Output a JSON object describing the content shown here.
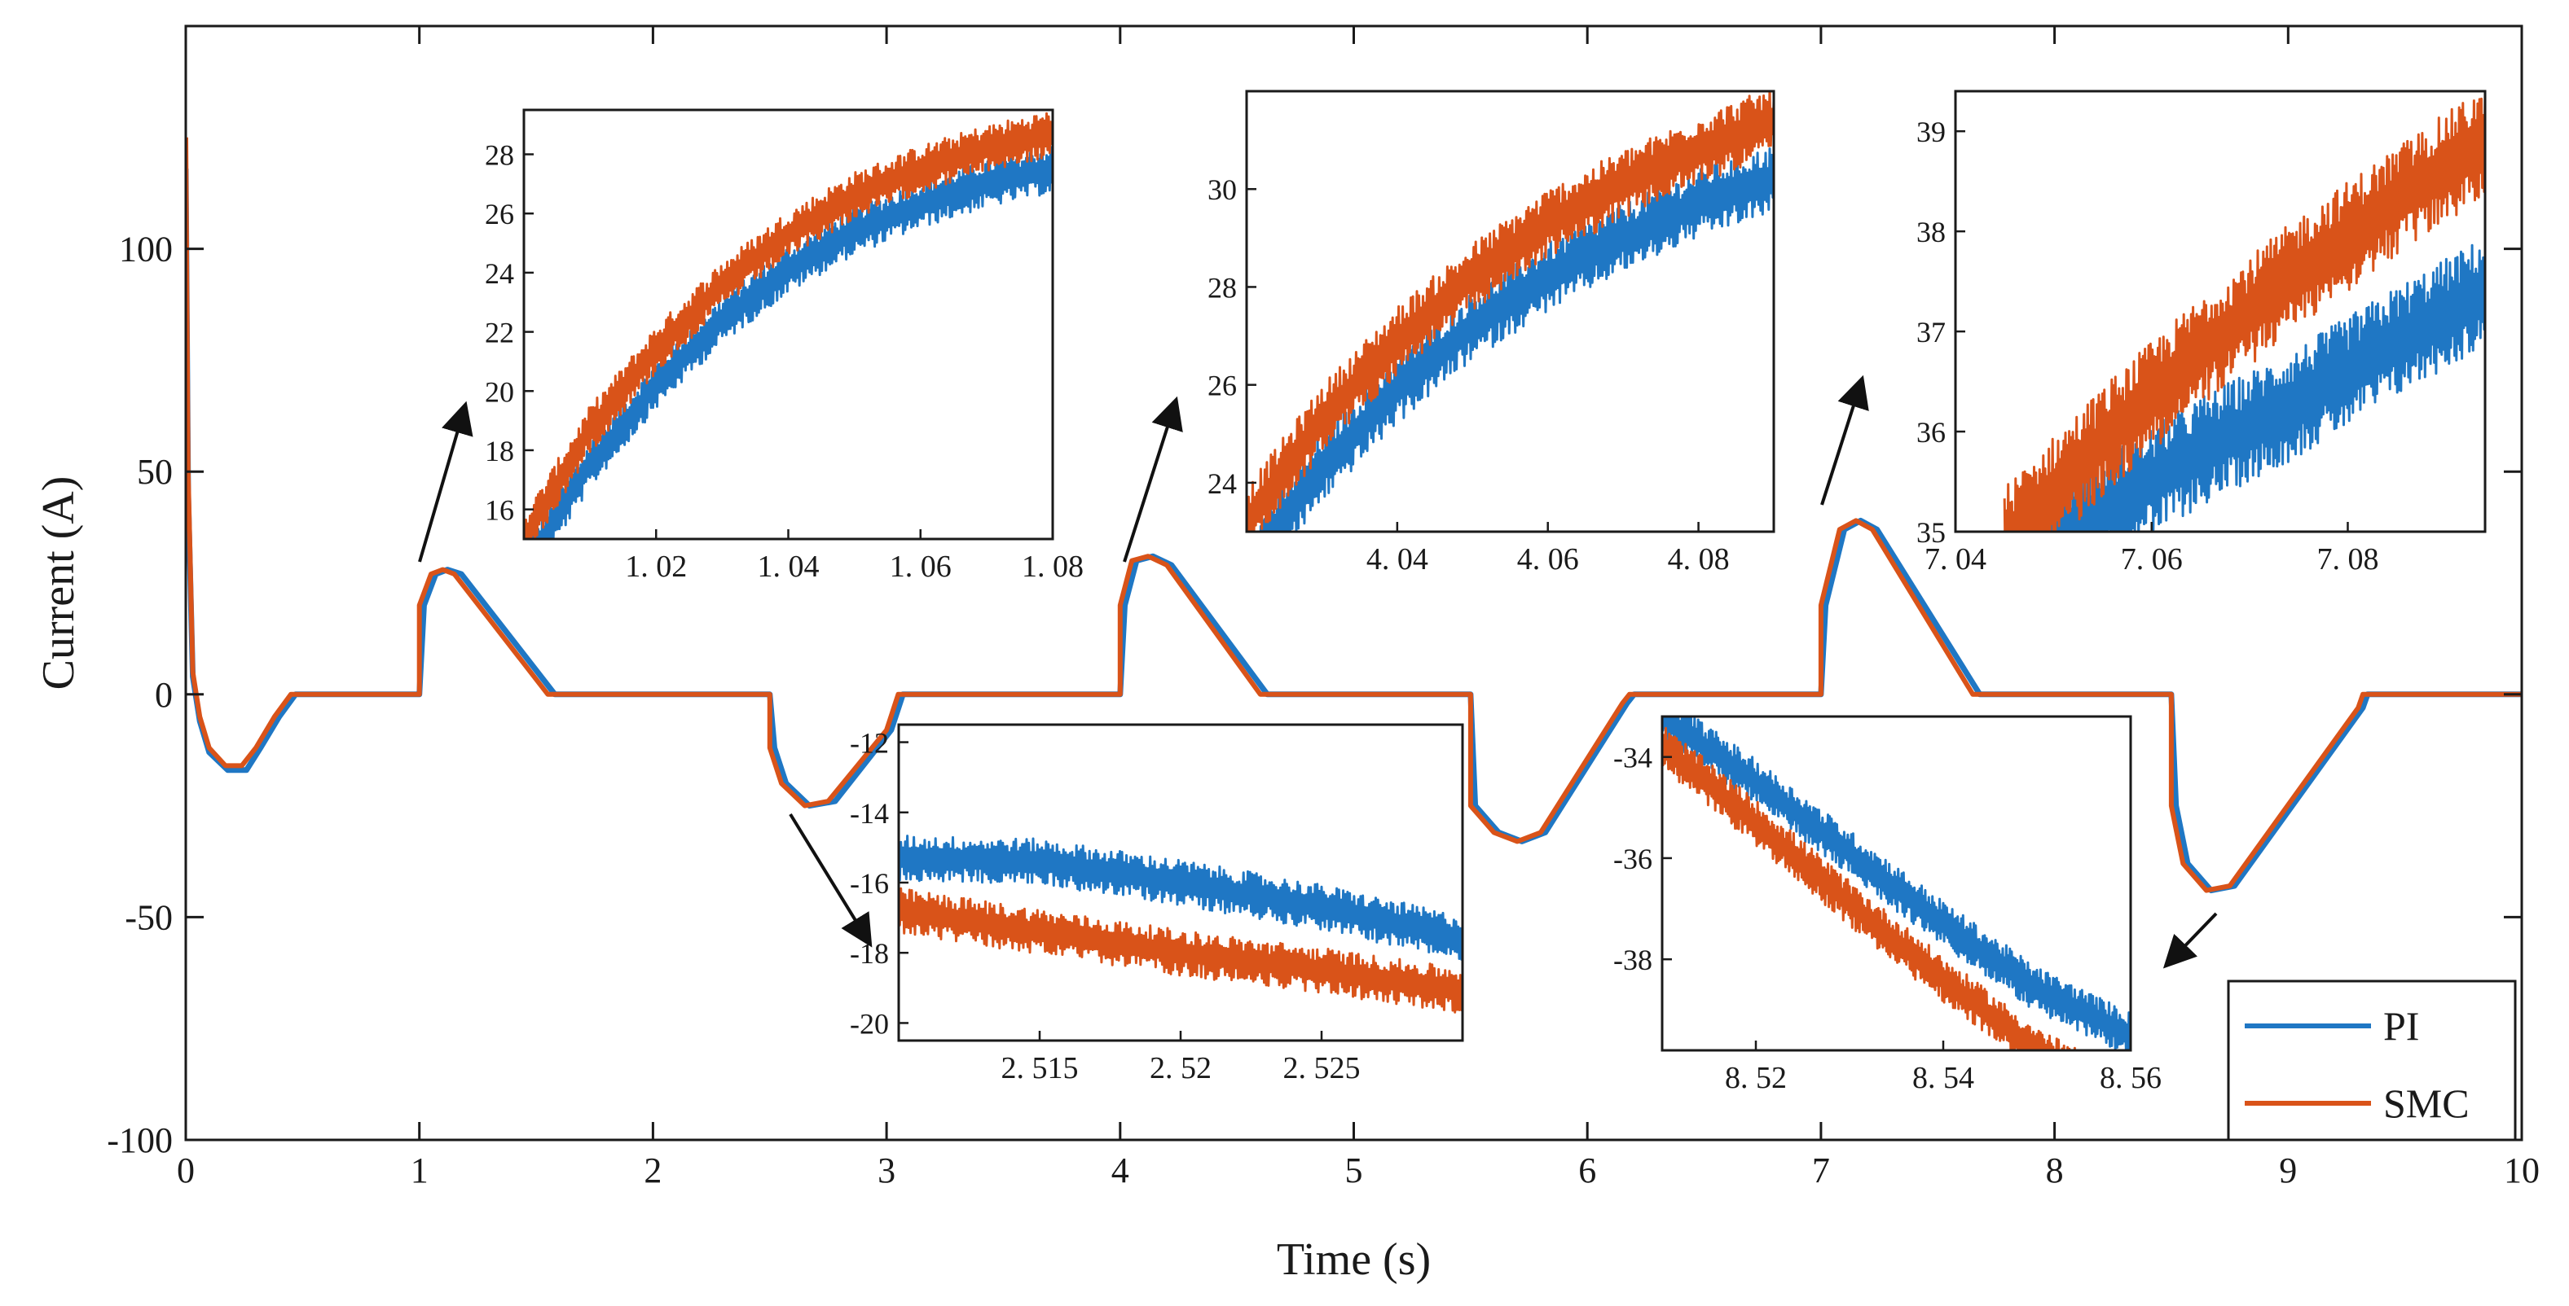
{
  "chart_data": {
    "type": "line",
    "main": {
      "xlabel": "Time (s)",
      "ylabel": "Current (A)",
      "xlim": [
        0,
        10
      ],
      "ylim": [
        -100,
        150
      ],
      "xticks": [
        0,
        1,
        2,
        3,
        4,
        5,
        6,
        7,
        8,
        9,
        10
      ],
      "xtick_labels": [
        "0",
        "1",
        "2",
        "3",
        "4",
        "5",
        "6",
        "7",
        "8",
        "9",
        "10"
      ],
      "yticks": [
        -100,
        -50,
        0,
        50,
        100
      ],
      "ytick_labels": [
        "-100",
        "-50",
        "0",
        "50",
        "100"
      ],
      "legend": {
        "position": "bottom-right",
        "entries": [
          "PI",
          "SMC"
        ]
      },
      "series": [
        {
          "name": "SMC",
          "color": "#d95319",
          "points": [
            [
              0,
              125
            ],
            [
              0.01,
              50
            ],
            [
              0.03,
              5
            ],
            [
              0.06,
              -5
            ],
            [
              0.1,
              -12
            ],
            [
              0.17,
              -16
            ],
            [
              0.24,
              -16
            ],
            [
              0.3,
              -12
            ],
            [
              0.38,
              -5
            ],
            [
              0.45,
              0
            ],
            [
              1.0,
              0
            ],
            [
              1.0,
              20
            ],
            [
              1.05,
              27
            ],
            [
              1.1,
              28
            ],
            [
              1.15,
              27
            ],
            [
              1.55,
              0
            ],
            [
              2.5,
              0
            ],
            [
              2.5,
              -12
            ],
            [
              2.55,
              -20
            ],
            [
              2.65,
              -25
            ],
            [
              2.75,
              -24
            ],
            [
              3.0,
              -8
            ],
            [
              3.05,
              0
            ],
            [
              4.0,
              0
            ],
            [
              4.0,
              20
            ],
            [
              4.05,
              30
            ],
            [
              4.12,
              31
            ],
            [
              4.2,
              29
            ],
            [
              4.6,
              0
            ],
            [
              5.5,
              0
            ],
            [
              5.5,
              -25
            ],
            [
              5.6,
              -31
            ],
            [
              5.7,
              -33
            ],
            [
              5.8,
              -31
            ],
            [
              6.15,
              -2
            ],
            [
              6.18,
              0
            ],
            [
              7.0,
              0
            ],
            [
              7.0,
              20
            ],
            [
              7.08,
              37
            ],
            [
              7.15,
              39
            ],
            [
              7.22,
              37
            ],
            [
              7.65,
              0
            ],
            [
              8.5,
              0
            ],
            [
              8.5,
              -25
            ],
            [
              8.55,
              -38
            ],
            [
              8.65,
              -44
            ],
            [
              8.75,
              -43
            ],
            [
              9.3,
              -3
            ],
            [
              9.32,
              0
            ],
            [
              10.0,
              0
            ]
          ]
        },
        {
          "name": "PI",
          "color": "#1f77c4",
          "points": [
            [
              0,
              118
            ],
            [
              0.01,
              45
            ],
            [
              0.03,
              4
            ],
            [
              0.06,
              -6
            ],
            [
              0.1,
              -13
            ],
            [
              0.18,
              -17
            ],
            [
              0.26,
              -17
            ],
            [
              0.32,
              -12
            ],
            [
              0.4,
              -5
            ],
            [
              0.47,
              0
            ],
            [
              1.0,
              0
            ],
            [
              1.02,
              20
            ],
            [
              1.07,
              27
            ],
            [
              1.12,
              28
            ],
            [
              1.18,
              27
            ],
            [
              1.58,
              0
            ],
            [
              2.5,
              0
            ],
            [
              2.52,
              -12
            ],
            [
              2.57,
              -20
            ],
            [
              2.67,
              -25
            ],
            [
              2.78,
              -24
            ],
            [
              3.02,
              -8
            ],
            [
              3.07,
              0
            ],
            [
              4.0,
              0
            ],
            [
              4.02,
              20
            ],
            [
              4.07,
              30
            ],
            [
              4.14,
              31
            ],
            [
              4.22,
              29
            ],
            [
              4.63,
              0
            ],
            [
              5.5,
              0
            ],
            [
              5.52,
              -25
            ],
            [
              5.62,
              -31
            ],
            [
              5.72,
              -33
            ],
            [
              5.82,
              -31
            ],
            [
              6.17,
              -2
            ],
            [
              6.2,
              0
            ],
            [
              7.0,
              0
            ],
            [
              7.02,
              20
            ],
            [
              7.1,
              37
            ],
            [
              7.17,
              39
            ],
            [
              7.24,
              37
            ],
            [
              7.68,
              0
            ],
            [
              8.5,
              0
            ],
            [
              8.52,
              -25
            ],
            [
              8.57,
              -38
            ],
            [
              8.67,
              -44
            ],
            [
              8.77,
              -43
            ],
            [
              9.32,
              -3
            ],
            [
              9.34,
              0
            ],
            [
              10.0,
              0
            ]
          ]
        }
      ]
    },
    "insets": [
      {
        "xlim": [
          1.0,
          1.08
        ],
        "ylim": [
          15,
          29.5
        ],
        "xticks": [
          1.02,
          1.04,
          1.06,
          1.08
        ],
        "xtick_labels": [
          "1. 02",
          "1. 04",
          "1. 06",
          "1. 08"
        ],
        "yticks": [
          16,
          18,
          20,
          22,
          24,
          26,
          28
        ],
        "ytick_labels": [
          "16",
          "18",
          "20",
          "22",
          "24",
          "26",
          "28"
        ],
        "pi": [
          [
            1.0,
            14
          ],
          [
            1.01,
            17.5
          ],
          [
            1.02,
            20.2
          ],
          [
            1.03,
            22.4
          ],
          [
            1.04,
            24.1
          ],
          [
            1.05,
            25.4
          ],
          [
            1.06,
            26.3
          ],
          [
            1.07,
            27.0
          ],
          [
            1.08,
            27.5
          ]
        ],
        "smc": [
          [
            1.0,
            15
          ],
          [
            1.01,
            18.7
          ],
          [
            1.02,
            21.4
          ],
          [
            1.03,
            23.6
          ],
          [
            1.04,
            25.3
          ],
          [
            1.05,
            26.6
          ],
          [
            1.06,
            27.5
          ],
          [
            1.07,
            28.2
          ],
          [
            1.08,
            28.7
          ]
        ],
        "band": 1.6
      },
      {
        "xlim": [
          4.02,
          4.09
        ],
        "ylim": [
          23,
          32
        ],
        "xticks": [
          4.04,
          4.06,
          4.08
        ],
        "xtick_labels": [
          "4. 04",
          "4. 06",
          "4. 08"
        ],
        "yticks": [
          24,
          26,
          28,
          30
        ],
        "ytick_labels": [
          "24",
          "26",
          "28",
          "30"
        ],
        "pi": [
          [
            4.02,
            22.2
          ],
          [
            4.03,
            24.3
          ],
          [
            4.04,
            25.9
          ],
          [
            4.05,
            27.2
          ],
          [
            4.06,
            28.2
          ],
          [
            4.07,
            29.0
          ],
          [
            4.08,
            29.7
          ],
          [
            4.09,
            30.2
          ]
        ],
        "smc": [
          [
            4.02,
            23.2
          ],
          [
            4.03,
            25.3
          ],
          [
            4.04,
            26.9
          ],
          [
            4.05,
            28.2
          ],
          [
            4.06,
            29.3
          ],
          [
            4.07,
            30.1
          ],
          [
            4.08,
            30.8
          ],
          [
            4.09,
            31.4
          ]
        ],
        "band": 1.4
      },
      {
        "xlim": [
          7.04,
          7.094
        ],
        "ylim": [
          35,
          39.4
        ],
        "xticks": [
          7.04,
          7.06,
          7.08
        ],
        "xtick_labels": [
          "7. 04",
          "7. 06",
          "7. 08"
        ],
        "yticks": [
          35,
          36,
          37,
          38,
          39
        ],
        "ytick_labels": [
          "35",
          "36",
          "37",
          "38",
          "39"
        ],
        "pi": [
          [
            7.045,
            34.6
          ],
          [
            7.055,
            35.2
          ],
          [
            7.065,
            35.8
          ],
          [
            7.075,
            36.3
          ],
          [
            7.085,
            36.9
          ],
          [
            7.094,
            37.4
          ]
        ],
        "smc": [
          [
            7.045,
            34.9
          ],
          [
            7.055,
            35.9
          ],
          [
            7.065,
            36.8
          ],
          [
            7.075,
            37.6
          ],
          [
            7.085,
            38.3
          ],
          [
            7.094,
            38.9
          ]
        ],
        "band": 1.1
      },
      {
        "xlim": [
          2.51,
          2.53
        ],
        "ylim": [
          -20.5,
          -11.5
        ],
        "xticks": [
          2.515,
          2.52,
          2.525
        ],
        "xtick_labels": [
          "2. 515",
          "2. 52",
          "2. 525"
        ],
        "yticks": [
          -12,
          -14,
          -16,
          -18,
          -20
        ],
        "ytick_labels": [
          "-12",
          "-14",
          "-16",
          "-18",
          "-20"
        ],
        "pi": [
          [
            2.51,
            -15.3
          ],
          [
            2.515,
            -15.4
          ],
          [
            2.52,
            -16.0
          ],
          [
            2.525,
            -16.7
          ],
          [
            2.53,
            -17.6
          ]
        ],
        "smc": [
          [
            2.51,
            -16.8
          ],
          [
            2.515,
            -17.4
          ],
          [
            2.52,
            -18.0
          ],
          [
            2.525,
            -18.5
          ],
          [
            2.53,
            -19.1
          ]
        ],
        "band": 1.3
      },
      {
        "xlim": [
          8.51,
          8.56
        ],
        "ylim": [
          -39.8,
          -33.2
        ],
        "xticks": [
          8.52,
          8.54,
          8.56
        ],
        "xtick_labels": [
          "8. 52",
          "8. 54",
          "8. 56"
        ],
        "yticks": [
          -34,
          -36,
          -38
        ],
        "ytick_labels": [
          "-34",
          "-36",
          "-38"
        ],
        "pi": [
          [
            8.51,
            -33.2
          ],
          [
            8.52,
            -34.5
          ],
          [
            8.53,
            -35.9
          ],
          [
            8.54,
            -37.3
          ],
          [
            8.55,
            -38.6
          ],
          [
            8.56,
            -39.5
          ]
        ],
        "smc": [
          [
            8.51,
            -33.8
          ],
          [
            8.52,
            -35.3
          ],
          [
            8.53,
            -36.9
          ],
          [
            8.54,
            -38.4
          ],
          [
            8.55,
            -39.8
          ],
          [
            8.56,
            -40.8
          ]
        ],
        "band": 0.9
      }
    ]
  }
}
